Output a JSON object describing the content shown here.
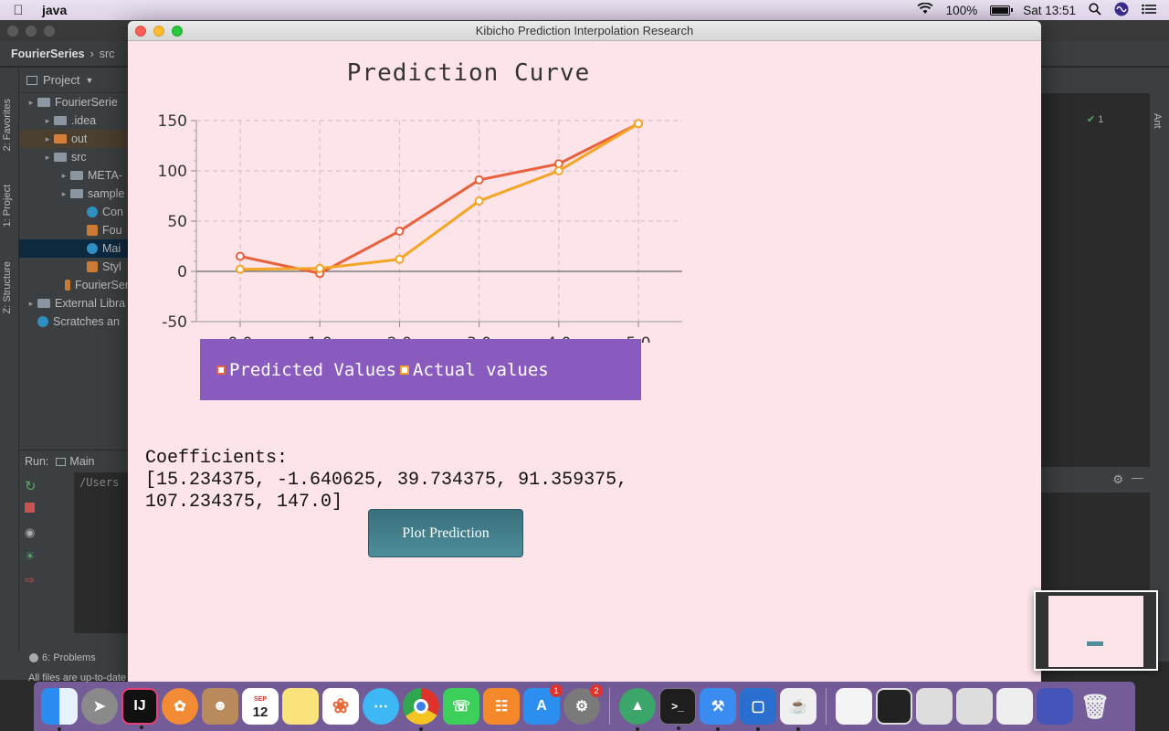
{
  "menubar": {
    "app_name": "java",
    "battery": "100%",
    "clock": "Sat 13:51"
  },
  "ide": {
    "breadcrumb": [
      "FourierSeries",
      "src"
    ],
    "project_label": "Project",
    "tree": [
      {
        "label": "FourierSerie",
        "indent": 0,
        "icon": "folder"
      },
      {
        "label": ".idea",
        "indent": 1,
        "icon": "folder"
      },
      {
        "label": "out",
        "indent": 1,
        "icon": "folder-orange"
      },
      {
        "label": "src",
        "indent": 1,
        "icon": "folder"
      },
      {
        "label": "META-",
        "indent": 2,
        "icon": "folder"
      },
      {
        "label": "sample",
        "indent": 2,
        "icon": "folder"
      },
      {
        "label": "Con",
        "indent": 3,
        "icon": "class"
      },
      {
        "label": "Fou",
        "indent": 3,
        "icon": "fxml"
      },
      {
        "label": "Mai",
        "indent": 3,
        "icon": "class"
      },
      {
        "label": "Styl",
        "indent": 3,
        "icon": "css"
      },
      {
        "label": "FourierSer",
        "indent": 2,
        "icon": "file"
      },
      {
        "label": "External Libra",
        "indent": 0,
        "icon": "lib"
      },
      {
        "label": "Scratches an",
        "indent": 0,
        "icon": "scratch"
      }
    ],
    "side_tabs": [
      "2: Favorites",
      "1: Project",
      "Z: Structure"
    ],
    "run_label": "Run:",
    "run_tab": "Main",
    "run_output": "/Users",
    "problems_tab": "6: Problems",
    "status_text": "All files are up-to-date",
    "right_tab": "Ant",
    "inspection_count": "1"
  },
  "app": {
    "window_title": "Kibicho Prediction Interpolation Research",
    "coefficients_label": "Coefficients:",
    "coefficients_values": "[15.234375, -1.640625, 39.734375, 91.359375, 107.234375, 147.0]",
    "plot_button": "Plot Prediction"
  },
  "chart_data": {
    "type": "line",
    "title": "Prediction Curve",
    "xlabel": "",
    "ylabel": "",
    "x": [
      0.0,
      1.0,
      2.0,
      3.0,
      4.0,
      5.0
    ],
    "x_tick_labels": [
      "0.0",
      "1.0",
      "2.0",
      "3.0",
      "4.0",
      "5.0"
    ],
    "y_tick_labels": [
      "150",
      "100",
      "50",
      "0",
      "-50"
    ],
    "y_ticks": [
      150,
      100,
      50,
      0,
      -50
    ],
    "xlim": [
      -0.55,
      5.55
    ],
    "ylim": [
      -50,
      150
    ],
    "grid": true,
    "legend_position": "bottom",
    "series": [
      {
        "name": "Predicted Values",
        "color": "#e8603c",
        "values": [
          15,
          -2,
          40,
          91,
          107,
          147
        ]
      },
      {
        "name": "Actual values",
        "color": "#f5a524",
        "values": [
          2,
          3,
          12,
          70,
          100,
          147
        ]
      }
    ]
  },
  "dock": {
    "calendar_month": "SEP",
    "calendar_day": "12",
    "badges": {
      "app_store": "1",
      "system_prefs": "2"
    }
  }
}
